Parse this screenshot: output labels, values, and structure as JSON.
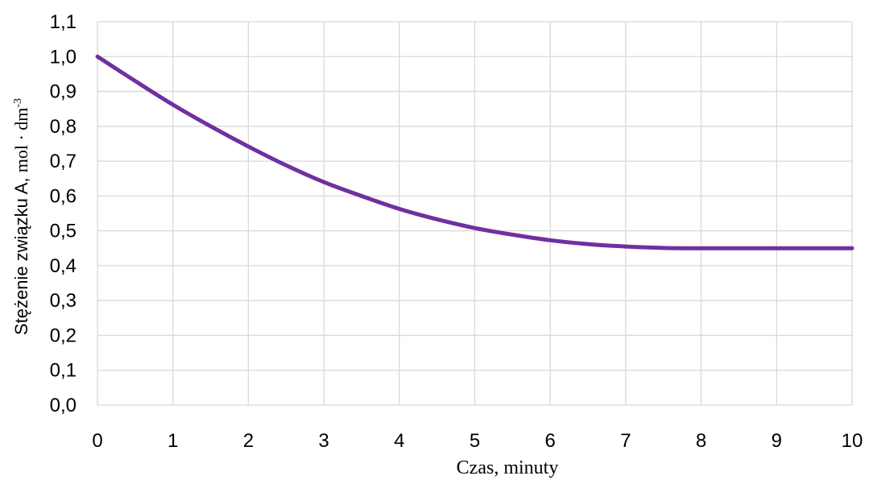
{
  "chart_data": {
    "type": "line",
    "xlabel": "Czas, minuty",
    "ylabel_main": "Stężenie związku A, ",
    "ylabel_unit": "mol · dm",
    "ylabel_unit_exp": "-3",
    "xlim": [
      0,
      10
    ],
    "ylim": [
      0,
      1.1
    ],
    "x_ticks": [
      "0",
      "1",
      "2",
      "3",
      "4",
      "5",
      "6",
      "7",
      "8",
      "9",
      "10"
    ],
    "y_ticks": [
      "0,0",
      "0,1",
      "0,2",
      "0,3",
      "0,4",
      "0,5",
      "0,6",
      "0,7",
      "0,8",
      "0,9",
      "1,0",
      "1,1"
    ],
    "grid": true,
    "series": [
      {
        "color": "#7030A0",
        "x": [
          0,
          0.5,
          1,
          1.5,
          2,
          2.5,
          3,
          3.5,
          4,
          4.5,
          5,
          5.5,
          6,
          6.5,
          7,
          7.5,
          8,
          8.5,
          9,
          9.5,
          10
        ],
        "y": [
          1.0,
          0.93,
          0.862,
          0.8,
          0.742,
          0.688,
          0.64,
          0.6,
          0.563,
          0.533,
          0.508,
          0.489,
          0.473,
          0.462,
          0.455,
          0.451,
          0.45,
          0.45,
          0.45,
          0.45,
          0.45
        ]
      }
    ]
  }
}
